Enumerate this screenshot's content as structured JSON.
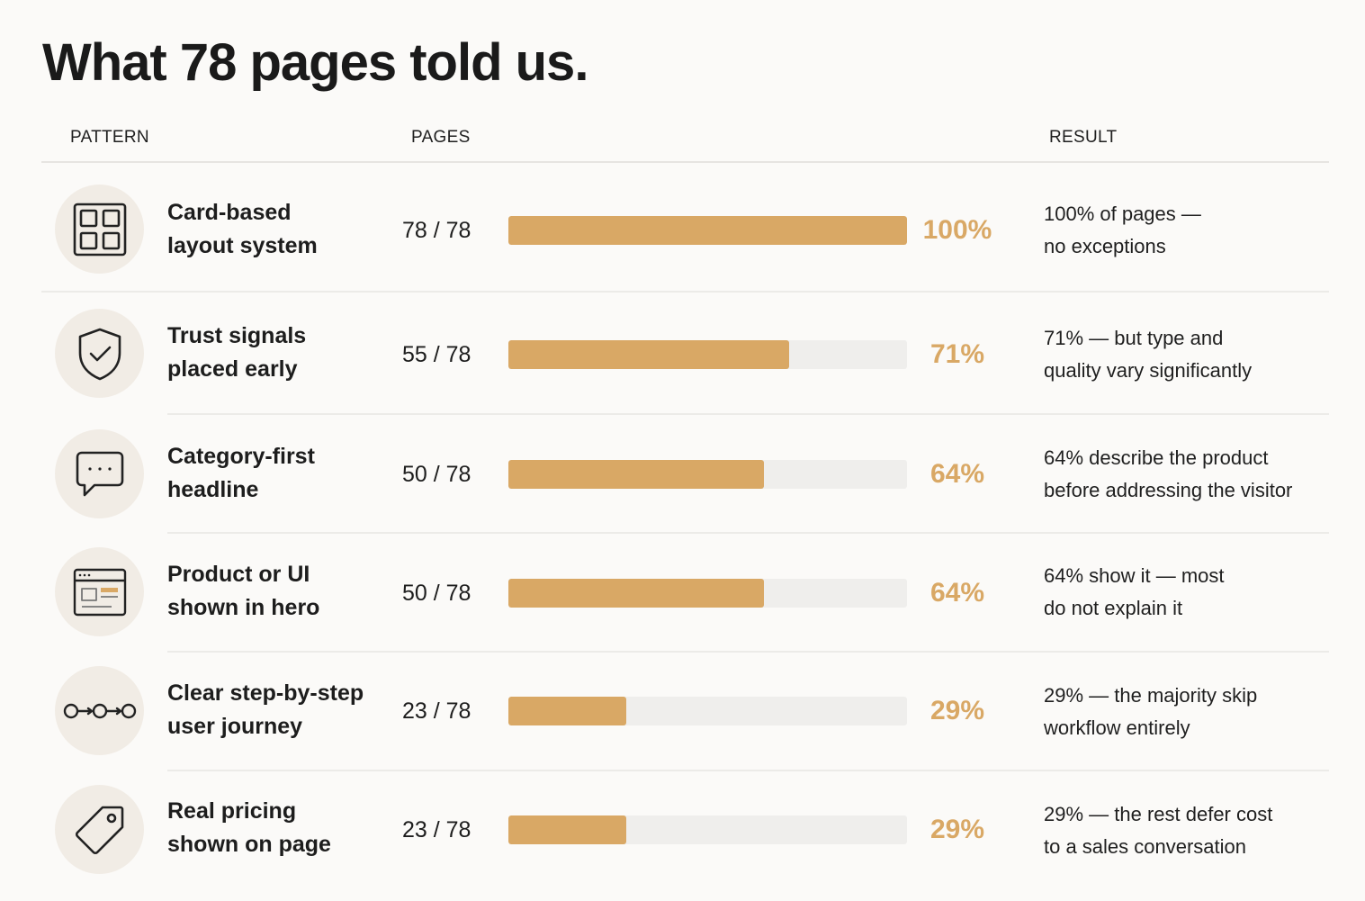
{
  "title": "What 78 pages told us.",
  "headers": {
    "pattern": "PATTERN",
    "pages": "PAGES",
    "result": "RESULT"
  },
  "colors": {
    "bar": "#d9a865",
    "track": "#efeeec",
    "icon_bg": "#f1ece5"
  },
  "chart_data": {
    "type": "bar",
    "orientation": "horizontal",
    "total": 78,
    "categories": [
      "Card-based layout system",
      "Trust signals placed early",
      "Category-first headline",
      "Product or UI shown in hero",
      "Clear step-by-step user journey",
      "Real pricing shown on page"
    ],
    "values": [
      78,
      55,
      50,
      50,
      23,
      23
    ],
    "xlim": [
      0,
      78
    ],
    "grid": false
  },
  "rows": [
    {
      "icon": "grid-layout-icon",
      "pattern_line1": "Card-based",
      "pattern_line2": "layout system",
      "pages": "78 / 78",
      "count": 78,
      "pct": "100%",
      "result_line1": "100% of pages —",
      "result_line2": "no exceptions"
    },
    {
      "icon": "shield-check-icon",
      "pattern_line1": "Trust signals",
      "pattern_line2": "placed early",
      "pages": "55 / 78",
      "count": 55,
      "pct": "71%",
      "result_line1": "71% — but type and",
      "result_line2": "quality vary significantly"
    },
    {
      "icon": "chat-bubble-icon",
      "pattern_line1": "Category-first",
      "pattern_line2": "headline",
      "pages": "50 / 78",
      "count": 50,
      "pct": "64%",
      "result_line1": "64% describe the product",
      "result_line2": "before addressing the visitor"
    },
    {
      "icon": "browser-window-icon",
      "pattern_line1": "Product or UI",
      "pattern_line2": "shown in hero",
      "pages": "50 / 78",
      "count": 50,
      "pct": "64%",
      "result_line1": "64% show it — most",
      "result_line2": "do not explain it"
    },
    {
      "icon": "steps-flow-icon",
      "pattern_line1": "Clear step-by-step",
      "pattern_line2": "user journey",
      "pages": "23 / 78",
      "count": 23,
      "pct": "29%",
      "result_line1": "29% — the majority skip",
      "result_line2": "workflow entirely"
    },
    {
      "icon": "price-tag-icon",
      "pattern_line1": "Real pricing",
      "pattern_line2": "shown on page",
      "pages": "23 / 78",
      "count": 23,
      "pct": "29%",
      "result_line1": "29% — the rest defer cost",
      "result_line2": "to a sales conversation"
    }
  ]
}
